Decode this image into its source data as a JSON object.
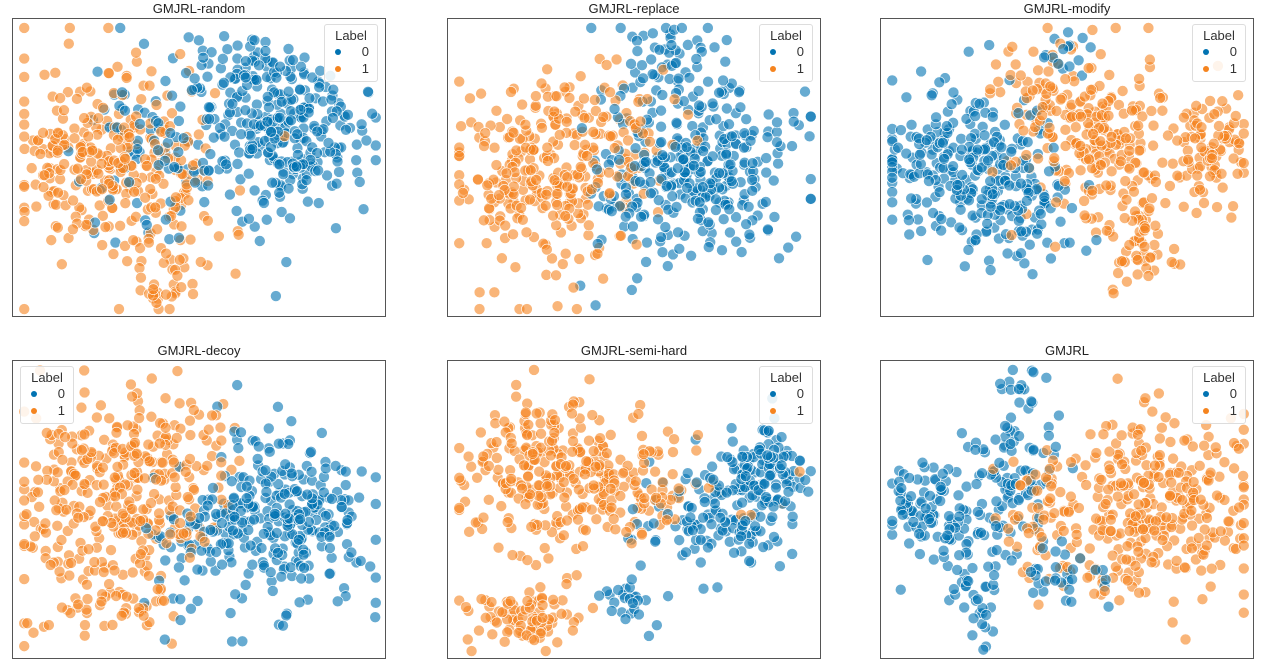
{
  "colors": {
    "0": "#0173b2",
    "1": "#f5841f"
  },
  "legend": {
    "title": "Label",
    "labels": [
      "0",
      "1"
    ]
  },
  "chart_data": [
    {
      "type": "scatter",
      "title": "GMJRL-random",
      "legend_placement": "top-right",
      "xlim": [
        0,
        100
      ],
      "ylim": [
        0,
        100
      ],
      "clusters": [
        [
          1,
          22,
          55,
          13,
          15,
          230
        ],
        [
          0,
          73,
          60,
          12,
          13,
          270
        ],
        [
          1,
          40,
          42,
          9,
          17,
          90
        ],
        [
          0,
          38,
          58,
          10,
          14,
          80
        ],
        [
          1,
          40,
          12,
          4,
          6,
          25
        ],
        [
          0,
          62,
          82,
          8,
          7,
          60
        ]
      ]
    },
    {
      "type": "scatter",
      "title": "GMJRL-replace",
      "legend_placement": "top-right",
      "xlim": [
        0,
        100
      ],
      "ylim": [
        0,
        100
      ],
      "clusters": [
        [
          1,
          25,
          48,
          12,
          17,
          260
        ],
        [
          0,
          72,
          52,
          12,
          14,
          260
        ],
        [
          0,
          58,
          82,
          8,
          8,
          60
        ],
        [
          1,
          45,
          60,
          8,
          12,
          60
        ],
        [
          0,
          48,
          40,
          8,
          14,
          60
        ]
      ]
    },
    {
      "type": "scatter",
      "title": "GMJRL-modify",
      "legend_placement": "top-right",
      "xlim": [
        0,
        100
      ],
      "ylim": [
        0,
        100
      ],
      "clusters": [
        [
          0,
          22,
          52,
          11,
          14,
          240
        ],
        [
          1,
          58,
          60,
          11,
          16,
          220
        ],
        [
          1,
          88,
          55,
          5,
          10,
          90
        ],
        [
          1,
          70,
          25,
          5,
          7,
          50
        ],
        [
          0,
          40,
          35,
          8,
          12,
          70
        ],
        [
          1,
          40,
          75,
          6,
          8,
          40
        ],
        [
          0,
          50,
          88,
          4,
          4,
          15
        ]
      ]
    },
    {
      "type": "scatter",
      "title": "GMJRL-decoy",
      "legend_placement": "top-left",
      "xlim": [
        0,
        100
      ],
      "ylim": [
        0,
        100
      ],
      "clusters": [
        [
          1,
          25,
          52,
          13,
          17,
          300
        ],
        [
          0,
          72,
          48,
          12,
          14,
          280
        ],
        [
          1,
          45,
          70,
          8,
          12,
          60
        ],
        [
          0,
          48,
          35,
          6,
          14,
          50
        ],
        [
          1,
          30,
          18,
          8,
          5,
          40
        ]
      ]
    },
    {
      "type": "scatter",
      "title": "GMJRL-semi-hard",
      "legend_placement": "top-right",
      "xlim": [
        0,
        100
      ],
      "ylim": [
        0,
        100
      ],
      "clusters": [
        [
          1,
          30,
          65,
          13,
          14,
          280
        ],
        [
          0,
          85,
          65,
          5,
          8,
          110
        ],
        [
          0,
          72,
          48,
          10,
          8,
          130
        ],
        [
          1,
          20,
          14,
          7,
          5,
          80
        ],
        [
          0,
          46,
          20,
          4,
          4,
          25
        ],
        [
          1,
          55,
          55,
          10,
          8,
          60
        ]
      ]
    },
    {
      "type": "scatter",
      "title": "GMJRL",
      "legend_placement": "top-right",
      "xlim": [
        0,
        100
      ],
      "ylim": [
        0,
        100
      ],
      "clusters": [
        [
          1,
          72,
          52,
          14,
          15,
          330
        ],
        [
          0,
          10,
          52,
          5,
          9,
          70
        ],
        [
          0,
          36,
          62,
          6,
          12,
          90
        ],
        [
          0,
          26,
          18,
          3,
          8,
          30
        ],
        [
          0,
          22,
          40,
          5,
          6,
          40
        ],
        [
          1,
          42,
          45,
          5,
          10,
          40
        ],
        [
          0,
          48,
          28,
          6,
          5,
          30
        ],
        [
          0,
          38,
          90,
          3,
          4,
          15
        ]
      ]
    }
  ]
}
